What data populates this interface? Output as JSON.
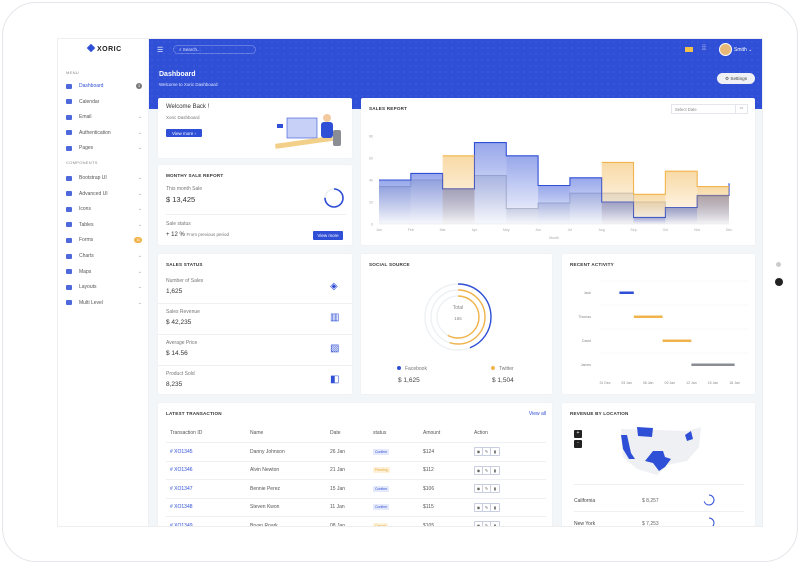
{
  "brand": "XORIC",
  "sidebar": {
    "menu_label": "MENU",
    "components_label": "COMPONENTS",
    "menu": [
      {
        "label": "Dashboard",
        "icon": "dashboard-icon",
        "badge": "3",
        "active": true
      },
      {
        "label": "Calendar",
        "icon": "calendar-icon"
      },
      {
        "label": "Email",
        "icon": "email-icon",
        "chevron": true
      },
      {
        "label": "Authentication",
        "icon": "eye-icon",
        "chevron": true
      },
      {
        "label": "Pages",
        "icon": "pages-icon",
        "chevron": true
      }
    ],
    "components": [
      {
        "label": "Bootstrap UI",
        "icon": "bootstrap-icon",
        "chevron": true
      },
      {
        "label": "Advanced UI",
        "icon": "advanced-icon",
        "chevron": true
      },
      {
        "label": "Icons",
        "icon": "icons-icon",
        "chevron": true
      },
      {
        "label": "Tables",
        "icon": "table-icon",
        "chevron": true
      },
      {
        "label": "Forms",
        "icon": "forms-icon",
        "badge": "11"
      },
      {
        "label": "Charts",
        "icon": "chart-icon",
        "chevron": true
      },
      {
        "label": "Maps",
        "icon": "map-icon",
        "chevron": true
      },
      {
        "label": "Layouts",
        "icon": "layout-icon",
        "chevron": true
      },
      {
        "label": "Multi Level",
        "icon": "multilevel-icon",
        "chevron": true
      }
    ]
  },
  "header": {
    "search_placeholder": "Search...",
    "user": "Smith",
    "title": "Dashboard",
    "subtitle": "Welcome to Xoric Dashboard",
    "settings": "Settings"
  },
  "welcome": {
    "title": "Welcome Back !",
    "subtitle": "Xoric Dashboard",
    "button": "View more"
  },
  "monthly": {
    "title": "MONTHY SALE REPORT",
    "this_month_label": "This month Sale",
    "this_month_value": "$ 13,425",
    "progress": 0.75,
    "status_label": "Sale status",
    "change": "+ 12 %",
    "change_note": "From previous period",
    "button": "View more"
  },
  "sales_report": {
    "title": "SALES REPORT",
    "date_placeholder": "Select Date"
  },
  "chart_data": [
    {
      "type": "line",
      "step": true,
      "title": "SALES REPORT",
      "xlabel": "Month",
      "ylim": [
        0,
        80
      ],
      "yticks": [
        0,
        20,
        40,
        60,
        80
      ],
      "categories": [
        "Jan",
        "Feb",
        "Mar",
        "Apr",
        "May",
        "Jun",
        "Jul",
        "Aug",
        "Sep",
        "Oct",
        "Nov",
        "Dec"
      ],
      "series": [
        {
          "color": "#c4c7cf",
          "values": [
            34,
            40,
            32,
            44,
            14,
            19,
            28,
            28,
            20,
            15,
            25,
            25
          ]
        },
        {
          "color": "#2f4fd6",
          "values": [
            40,
            46,
            32,
            74,
            62,
            35,
            42,
            20,
            6,
            15,
            26,
            37
          ]
        },
        {
          "color": "#f1b44c",
          "values": [
            null,
            null,
            62,
            null,
            null,
            null,
            null,
            56,
            27,
            48,
            34,
            34
          ]
        }
      ]
    },
    {
      "type": "timeline",
      "title": "RECENT ACTIVITY",
      "xticks": [
        "31 Dec",
        "03 Jan",
        "06 Jan",
        "09 Jan",
        "12 Jan",
        "15 Jan",
        "18 Jan"
      ],
      "rows": [
        {
          "label": "Jack",
          "start": "02 Jan",
          "end": "04 Jan",
          "color": "#2f4fd6"
        },
        {
          "label": "Thomas",
          "start": "04 Jan",
          "end": "08 Jan",
          "color": "#f1b44c"
        },
        {
          "label": "David",
          "start": "08 Jan",
          "end": "12 Jan",
          "color": "#f1b44c"
        },
        {
          "label": "James",
          "start": "12 Jan",
          "end": "18 Jan",
          "color": "#8a8d93"
        }
      ]
    }
  ],
  "sales_status": {
    "title": "SALES STATUS",
    "items": [
      {
        "label": "Number of Sales",
        "value": "1,625",
        "icon": "layers-icon"
      },
      {
        "label": "Sales Revenue",
        "value": "$ 42,235",
        "icon": "bar-chart-icon"
      },
      {
        "label": "Average Price",
        "value": "$ 14.56",
        "icon": "ticket-icon"
      },
      {
        "label": "Product Sold",
        "value": "8,235",
        "icon": "box-icon"
      }
    ]
  },
  "social": {
    "title": "SOCIAL SOURCE",
    "total_label": "Total",
    "total": "166",
    "rings": [
      {
        "color": "#2f4fd6",
        "fraction": 0.44
      },
      {
        "color": "#f1b44c",
        "fraction": 0.55
      },
      {
        "color": "#f1b44c",
        "fraction": 0.58
      }
    ],
    "sources": [
      {
        "name": "Facebook",
        "value": "$ 1,625",
        "color": "#2f4fd6"
      },
      {
        "name": "Twitter",
        "value": "$ 1,504",
        "color": "#f1b44c"
      }
    ]
  },
  "transactions": {
    "title": "LATEST TRANSACTION",
    "view_all": "View all",
    "columns": [
      "Transaction ID",
      "Name",
      "Date",
      "status",
      "Amount",
      "Action"
    ],
    "rows": [
      {
        "id": "# XO1345",
        "name": "Danny Johnson",
        "date": "26 Jan",
        "status": "Confirm",
        "amount": "$124"
      },
      {
        "id": "# XO1346",
        "name": "Alvin Newton",
        "date": "21 Jan",
        "status": "Pending",
        "amount": "$112"
      },
      {
        "id": "# XO1347",
        "name": "Bennie Perez",
        "date": "15 Jan",
        "status": "Confirm",
        "amount": "$106"
      },
      {
        "id": "# XO1348",
        "name": "Steven Kwon",
        "date": "11 Jan",
        "status": "Confirm",
        "amount": "$115"
      },
      {
        "id": "# XO1349",
        "name": "Bryan Roark",
        "date": "08 Jan",
        "status": "Cancel",
        "amount": "$105"
      }
    ]
  },
  "location": {
    "title": "REVENUE BY LOCATION",
    "zoom_in": "+",
    "zoom_out": "-",
    "rows": [
      {
        "state": "California",
        "value": "$ 8,257",
        "progress": 0.7
      },
      {
        "state": "New York",
        "value": "$ 7,253",
        "progress": 0.55
      }
    ]
  }
}
